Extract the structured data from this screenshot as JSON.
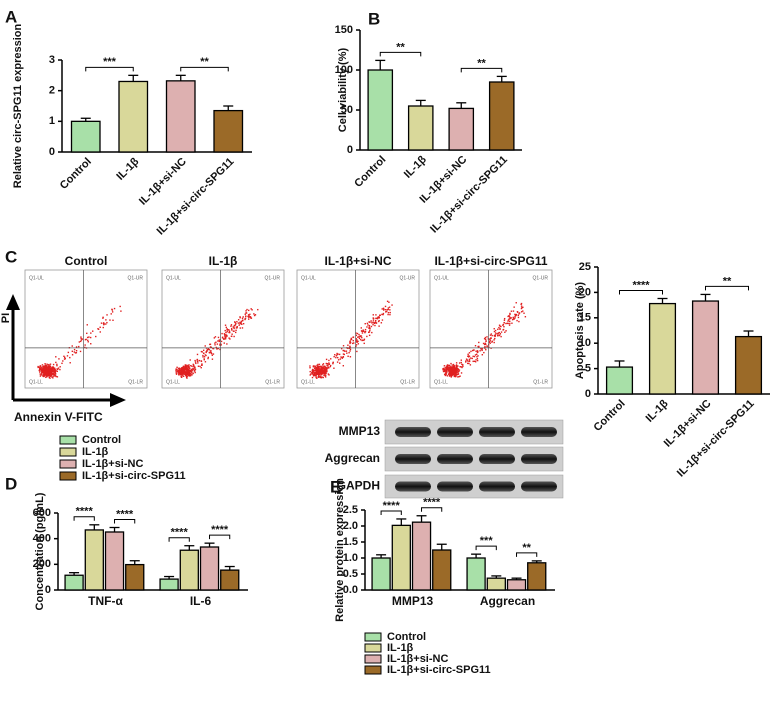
{
  "chart_data": [
    {
      "type": "bar",
      "panel": "A",
      "ylabel": "Relative circ-SPG11 expression",
      "categories": [
        "Control",
        "IL-1β",
        "IL-1β+si-NC",
        "IL-1β+si-circ-SPG11"
      ],
      "values": [
        1.0,
        2.3,
        2.32,
        1.35
      ],
      "errors": [
        0.1,
        0.2,
        0.18,
        0.15
      ],
      "colors": [
        "#a8e0a8",
        "#d9d89a",
        "#ddb0b0",
        "#9b6a28"
      ],
      "ylim": [
        0,
        3
      ],
      "yticks": [
        0,
        1,
        2,
        3
      ],
      "annotations": [
        {
          "text": "***",
          "between": [
            "Control",
            "IL-1β"
          ]
        },
        {
          "text": "**",
          "between": [
            "IL-1β+si-NC",
            "IL-1β+si-circ-SPG11"
          ]
        }
      ]
    },
    {
      "type": "bar",
      "panel": "B",
      "ylabel": "Cell viability (%)",
      "categories": [
        "Control",
        "IL-1β",
        "IL-1β+si-NC",
        "IL-1β+si-circ-SPG11"
      ],
      "values": [
        100,
        55,
        52,
        85
      ],
      "errors": [
        12,
        7,
        7,
        7
      ],
      "colors": [
        "#a8e0a8",
        "#d9d89a",
        "#ddb0b0",
        "#9b6a28"
      ],
      "ylim": [
        0,
        150
      ],
      "yticks": [
        0,
        50,
        100,
        150
      ],
      "annotations": [
        {
          "text": "**",
          "between": [
            "Control",
            "IL-1β"
          ]
        },
        {
          "text": "**",
          "between": [
            "IL-1β+si-NC",
            "IL-1β+si-circ-SPG11"
          ]
        }
      ]
    },
    {
      "type": "bar",
      "panel": "C",
      "ylabel": "Apoptosis rate (%)",
      "categories": [
        "Control",
        "IL-1β",
        "IL-1β+si-NC",
        "IL-1β+si-circ-SPG11"
      ],
      "values": [
        5.3,
        17.8,
        18.3,
        11.3
      ],
      "errors": [
        1.2,
        1.0,
        1.3,
        1.1
      ],
      "colors": [
        "#a8e0a8",
        "#d9d89a",
        "#ddb0b0",
        "#9b6a28"
      ],
      "ylim": [
        0,
        25
      ],
      "yticks": [
        0,
        5,
        10,
        15,
        20,
        25
      ],
      "annotations": [
        {
          "text": "****",
          "between": [
            "Control",
            "IL-1β"
          ]
        },
        {
          "text": "**",
          "between": [
            "IL-1β+si-NC",
            "IL-1β+si-circ-SPG11"
          ]
        }
      ]
    },
    {
      "type": "grouped_bar",
      "panel": "D",
      "ylabel": "Concentration (pg/mL)",
      "categories": [
        "TNF-α",
        "IL-6"
      ],
      "series": [
        {
          "name": "Control",
          "color": "#a8e0a8",
          "values": [
            115,
            85
          ],
          "errors": [
            20,
            20
          ]
        },
        {
          "name": "IL-1β",
          "color": "#d9d89a",
          "values": [
            468,
            310
          ],
          "errors": [
            40,
            35
          ]
        },
        {
          "name": "IL-1β+si-NC",
          "color": "#ddb0b0",
          "values": [
            452,
            335
          ],
          "errors": [
            35,
            30
          ]
        },
        {
          "name": "IL-1β+si-circ-SPG11",
          "color": "#9b6a28",
          "values": [
            198,
            155
          ],
          "errors": [
            30,
            28
          ]
        }
      ],
      "ylim": [
        0,
        600
      ],
      "yticks": [
        0,
        200,
        400,
        600
      ],
      "legend": "top",
      "annotations": [
        {
          "text": "****",
          "category": "TNF-α",
          "between": [
            "Control",
            "IL-1β"
          ]
        },
        {
          "text": "****",
          "category": "TNF-α",
          "between": [
            "IL-1β+si-NC",
            "IL-1β+si-circ-SPG11"
          ]
        },
        {
          "text": "****",
          "category": "IL-6",
          "between": [
            "Control",
            "IL-1β"
          ]
        },
        {
          "text": "****",
          "category": "IL-6",
          "between": [
            "IL-1β+si-NC",
            "IL-1β+si-circ-SPG11"
          ]
        }
      ]
    },
    {
      "type": "grouped_bar",
      "panel": "E",
      "ylabel": "Relative protein expression",
      "categories": [
        "MMP13",
        "Aggrecan"
      ],
      "series": [
        {
          "name": "Control",
          "color": "#a8e0a8",
          "values": [
            1.0,
            1.0
          ],
          "errors": [
            0.1,
            0.12
          ]
        },
        {
          "name": "IL-1β",
          "color": "#d9d89a",
          "values": [
            2.02,
            0.37
          ],
          "errors": [
            0.2,
            0.07
          ]
        },
        {
          "name": "IL-1β+si-NC",
          "color": "#ddb0b0",
          "values": [
            2.12,
            0.32
          ],
          "errors": [
            0.2,
            0.05
          ]
        },
        {
          "name": "IL-1β+si-circ-SPG11",
          "color": "#9b6a28",
          "values": [
            1.25,
            0.85
          ],
          "errors": [
            0.18,
            0.06
          ]
        }
      ],
      "ylim": [
        0,
        2.5
      ],
      "yticks": [
        {
          "value": 0,
          "label": "0.0"
        },
        0.5,
        {
          "value": 1,
          "label": "1.0"
        },
        1.5,
        {
          "value": 2,
          "label": "2.0"
        },
        2.5
      ],
      "legend": "bottom",
      "annotations": [
        {
          "text": "****",
          "category": "MMP13",
          "between": [
            "Control",
            "IL-1β"
          ]
        },
        {
          "text": "****",
          "category": "MMP13",
          "between": [
            "IL-1β+si-NC",
            "IL-1β+si-circ-SPG11"
          ]
        },
        {
          "text": "***",
          "category": "Aggrecan",
          "between": [
            "Control",
            "IL-1β"
          ]
        },
        {
          "text": "**",
          "category": "Aggrecan",
          "between": [
            "IL-1β+si-NC",
            "IL-1β+si-circ-SPG11"
          ]
        }
      ]
    }
  ],
  "flow_cytometry": {
    "titles": [
      "Control",
      "IL-1β",
      "IL-1β+si-NC",
      "IL-1β+si-circ-SPG11"
    ],
    "quadrants": [
      "Q1-UL",
      "Q1-UR",
      "Q1-LL",
      "Q1-LR"
    ],
    "y_label": "PI",
    "x_label": "Annexin V-FITC"
  },
  "western_blot": {
    "labels": [
      "MMP13",
      "Aggrecan",
      "GAPDH"
    ]
  }
}
